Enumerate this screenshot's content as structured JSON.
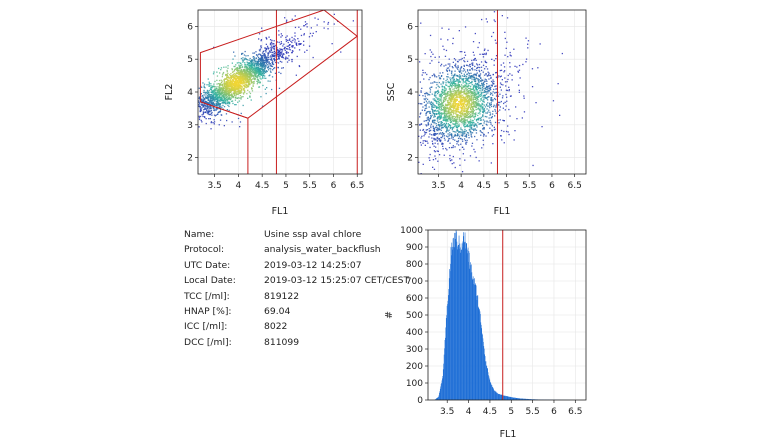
{
  "colors": {
    "gate": "#c81e1e",
    "hist_fill": "#1f6fd6",
    "density_low": "#2a2fb8",
    "density_mid": "#2fb2a0",
    "density_high": "#f2d633",
    "axis": "#222222"
  },
  "info": {
    "rows": [
      {
        "key": "Name:",
        "value": "Usine ssp aval chlore"
      },
      {
        "key": "Protocol:",
        "value": "analysis_water_backflush"
      },
      {
        "key": "UTC Date:",
        "value": "2019-03-12 14:25:07"
      },
      {
        "key": "Local Date:",
        "value": "2019-03-12 15:25:07 CET/CEST"
      },
      {
        "key": "TCC [/ml]:",
        "value": "819122"
      },
      {
        "key": "HNAP [%]:",
        "value": "69.04"
      },
      {
        "key": "ICC [/ml]:",
        "value": "8022"
      },
      {
        "key": "DCC [/ml]:",
        "value": "811099"
      }
    ]
  },
  "chart_data": [
    {
      "type": "scatter",
      "xlabel": "FL1",
      "ylabel": "FL2",
      "xlim": [
        3.15,
        6.6
      ],
      "ylim": [
        1.5,
        6.5
      ],
      "xticks": [
        "3.5",
        "4",
        "4.5",
        "5",
        "5.5",
        "6",
        "6.5"
      ],
      "yticks": [
        "2",
        "3",
        "4",
        "5",
        "6"
      ],
      "grid": true,
      "density_cluster": {
        "center": [
          3.95,
          4.3
        ],
        "spread": [
          0.45,
          0.5
        ],
        "correlation": 0.9
      },
      "gates": [
        {
          "type": "polygon",
          "points": [
            [
              3.2,
              5.2
            ],
            [
              5.8,
              6.5
            ],
            [
              6.5,
              5.7
            ],
            [
              4.2,
              3.2
            ],
            [
              3.2,
              3.7
            ]
          ]
        },
        {
          "type": "polyline",
          "points": [
            [
              3.2,
              3.7
            ],
            [
              4.2,
              3.2
            ],
            [
              4.2,
              1.5
            ]
          ]
        },
        {
          "type": "vline",
          "x": 4.8
        },
        {
          "type": "vline",
          "x": 6.5
        }
      ]
    },
    {
      "type": "scatter",
      "xlabel": "FL1",
      "ylabel": "SSC",
      "xlim": [
        3.05,
        6.75
      ],
      "ylim": [
        1.5,
        6.5
      ],
      "xticks": [
        "3.5",
        "4",
        "4.5",
        "5",
        "5.5",
        "6",
        "6.5"
      ],
      "yticks": [
        "2",
        "3",
        "4",
        "5",
        "6"
      ],
      "grid": true,
      "density_cluster": {
        "center": [
          3.95,
          3.65
        ],
        "spread": [
          0.4,
          0.55
        ],
        "correlation": 0.3
      },
      "gates": [
        {
          "type": "vline",
          "x": 4.8
        }
      ]
    },
    {
      "type": "bar",
      "xlabel": "FL1",
      "ylabel": "#",
      "xlim": [
        3.05,
        6.75
      ],
      "ylim": [
        0,
        1000
      ],
      "xticks": [
        "3.5",
        "4",
        "4.5",
        "5",
        "5.5",
        "6",
        "6.5"
      ],
      "yticks": [
        "0",
        "100",
        "200",
        "300",
        "400",
        "500",
        "600",
        "700",
        "800",
        "900",
        "1000"
      ],
      "grid": true,
      "bin_width": 0.01,
      "histogram_profile": [
        [
          3.2,
          0
        ],
        [
          3.3,
          20
        ],
        [
          3.4,
          150
        ],
        [
          3.5,
          560
        ],
        [
          3.6,
          900
        ],
        [
          3.7,
          960
        ],
        [
          3.8,
          900
        ],
        [
          3.9,
          960
        ],
        [
          4.0,
          840
        ],
        [
          4.1,
          720
        ],
        [
          4.2,
          620
        ],
        [
          4.3,
          440
        ],
        [
          4.4,
          230
        ],
        [
          4.5,
          110
        ],
        [
          4.6,
          55
        ],
        [
          4.7,
          35
        ],
        [
          4.8,
          28
        ],
        [
          5.0,
          16
        ],
        [
          5.2,
          9
        ],
        [
          5.5,
          4
        ],
        [
          5.8,
          2
        ],
        [
          6.1,
          1
        ],
        [
          6.5,
          0
        ]
      ],
      "gates": [
        {
          "type": "vline",
          "x": 4.8
        }
      ]
    }
  ]
}
